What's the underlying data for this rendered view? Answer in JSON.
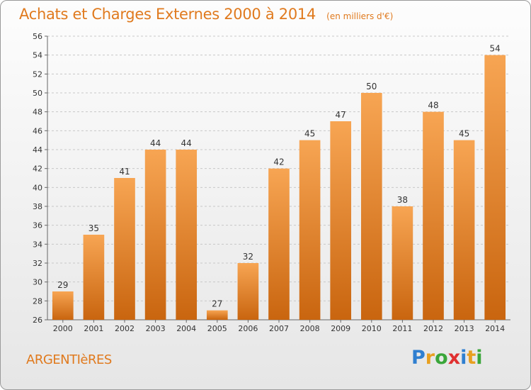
{
  "chart_data": {
    "type": "bar",
    "title": "Achats et Charges Externes 2000 à 2014",
    "subtitle": "(en milliers d'€)",
    "categories": [
      "2000",
      "2001",
      "2002",
      "2003",
      "2004",
      "2005",
      "2006",
      "2007",
      "2008",
      "2009",
      "2010",
      "2011",
      "2012",
      "2013",
      "2014"
    ],
    "values": [
      29,
      35,
      41,
      44,
      44,
      27,
      32,
      42,
      45,
      47,
      50,
      38,
      48,
      45,
      54
    ],
    "ylim": [
      26,
      56
    ],
    "yticks": [
      26,
      28,
      30,
      32,
      34,
      36,
      38,
      40,
      42,
      44,
      46,
      48,
      50,
      52,
      54,
      56
    ],
    "grid": "horizontal-dashed",
    "bar_color_top": "#f7a553",
    "bar_color_bottom": "#c9650f"
  },
  "footer": {
    "place": "ARGENTIèRES",
    "logo_letters": [
      {
        "ch": "P",
        "color": "#2f7fd0"
      },
      {
        "ch": "r",
        "color": "#e8a020"
      },
      {
        "ch": "o",
        "color": "#3aa63a"
      },
      {
        "ch": "x",
        "color": "#e03030"
      },
      {
        "ch": "i",
        "color": "#2f7fd0"
      },
      {
        "ch": "t",
        "color": "#e8a020"
      },
      {
        "ch": "i",
        "color": "#3aa63a"
      }
    ]
  }
}
